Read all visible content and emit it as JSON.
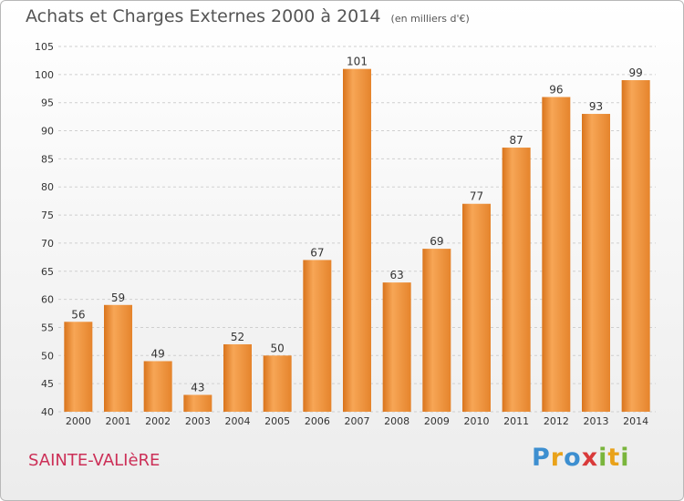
{
  "header": {
    "title": "Achats et Charges Externes 2000 à 2014",
    "subtitle": "(en milliers d'€)"
  },
  "footer": {
    "place": "SAINTE-VALIèRE",
    "logo": "Proxiti"
  },
  "colors": {
    "bar_light": "#f7a656",
    "bar_dark": "#d9741c",
    "grid": "#cfcfcf",
    "axis_text": "#333333",
    "place": "#cc2f57"
  },
  "chart_data": {
    "type": "bar",
    "title": "Achats et Charges Externes 2000 à 2014",
    "subtitle": "(en milliers d'€)",
    "categories": [
      "2000",
      "2001",
      "2002",
      "2003",
      "2004",
      "2005",
      "2006",
      "2007",
      "2008",
      "2009",
      "2010",
      "2011",
      "2012",
      "2013",
      "2014"
    ],
    "values": [
      56,
      59,
      49,
      43,
      52,
      50,
      67,
      101,
      63,
      69,
      77,
      87,
      96,
      93,
      99
    ],
    "ylim": [
      40,
      105
    ],
    "yticks": [
      40,
      45,
      50,
      55,
      60,
      65,
      70,
      75,
      80,
      85,
      90,
      95,
      100,
      105
    ],
    "grid": true,
    "legend": "none"
  }
}
